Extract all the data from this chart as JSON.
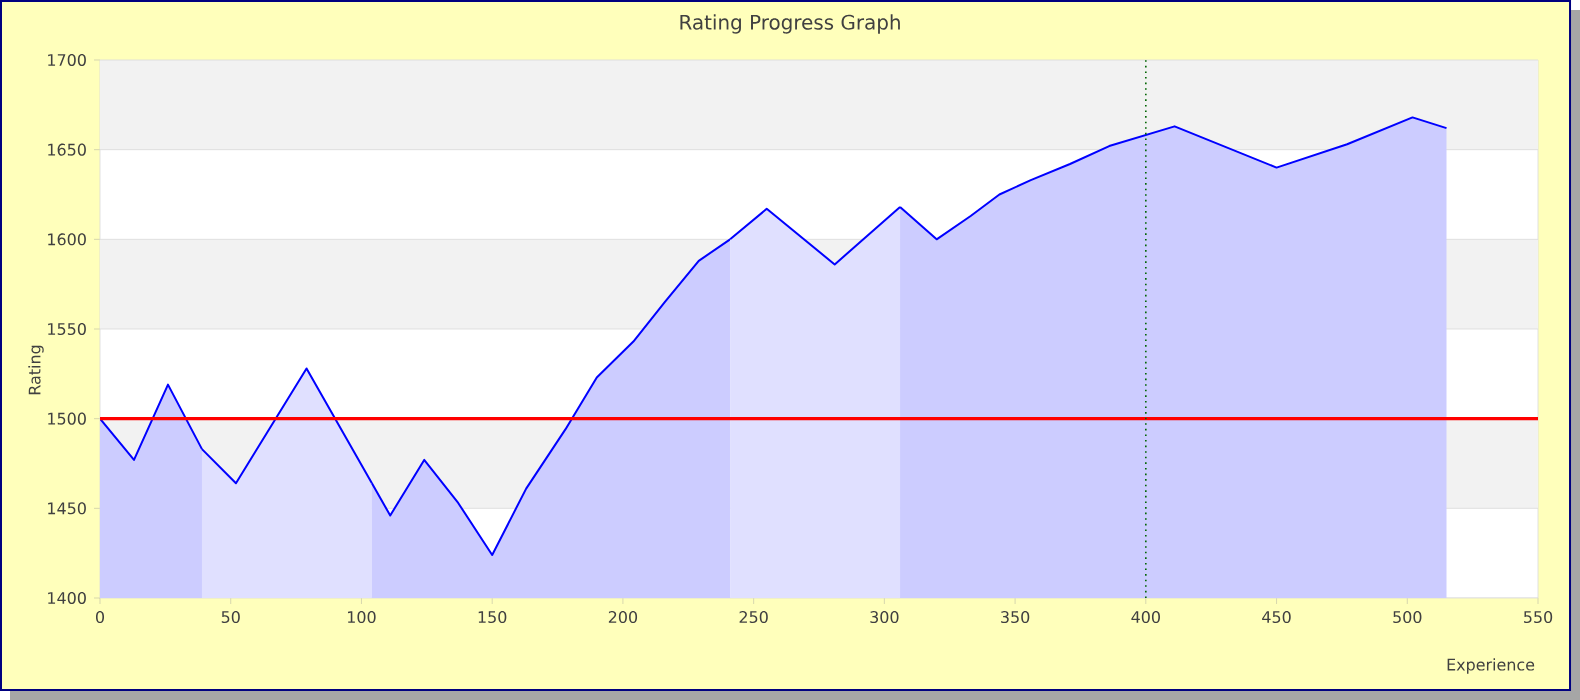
{
  "chart_data": {
    "type": "area",
    "title": "Rating Progress Graph",
    "xlabel": "Experience",
    "ylabel": "Rating",
    "xlim": [
      0,
      550
    ],
    "xticks": [
      0,
      50,
      100,
      150,
      200,
      250,
      300,
      350,
      400,
      450,
      500,
      550
    ],
    "ylim": [
      1400,
      1700
    ],
    "yticks": [
      1400,
      1450,
      1500,
      1550,
      1600,
      1650,
      1700
    ],
    "grid": "y",
    "marker": "none",
    "line_style": "solid",
    "series": [
      {
        "color": "#0000ff",
        "x": [
          0,
          13,
          26,
          39
        ],
        "values": [
          1500,
          1477,
          1519,
          1483
        ]
      },
      {
        "color": "#0000ff",
        "x": [
          39,
          52,
          79,
          104
        ],
        "values": [
          1483,
          1464,
          1528,
          1464
        ]
      },
      {
        "color": "#0000ff",
        "x": [
          104,
          111,
          124,
          137,
          150,
          163,
          178,
          190,
          204,
          216,
          229,
          241
        ],
        "values": [
          1464,
          1446,
          1477,
          1453,
          1424,
          1461,
          1494,
          1523,
          1543,
          1565,
          1588,
          1600
        ]
      },
      {
        "color": "#0000ff",
        "x": [
          241,
          255,
          281,
          306
        ],
        "values": [
          1600,
          1617,
          1586,
          1618
        ]
      },
      {
        "color": "#0000ff",
        "x": [
          306,
          320,
          333,
          344,
          356,
          371,
          386,
          411,
          450,
          477,
          502,
          515
        ],
        "values": [
          1618,
          1600,
          1613,
          1625,
          1633,
          1642,
          1652,
          1663,
          1640,
          1653,
          1668,
          1662
        ]
      }
    ],
    "ref_lines": [
      {
        "axis": "y",
        "value": 1500,
        "color": "#ff0000",
        "line_style": "solid"
      },
      {
        "axis": "x",
        "value": 400,
        "color": "#006400",
        "line_style": "dotted"
      }
    ]
  }
}
